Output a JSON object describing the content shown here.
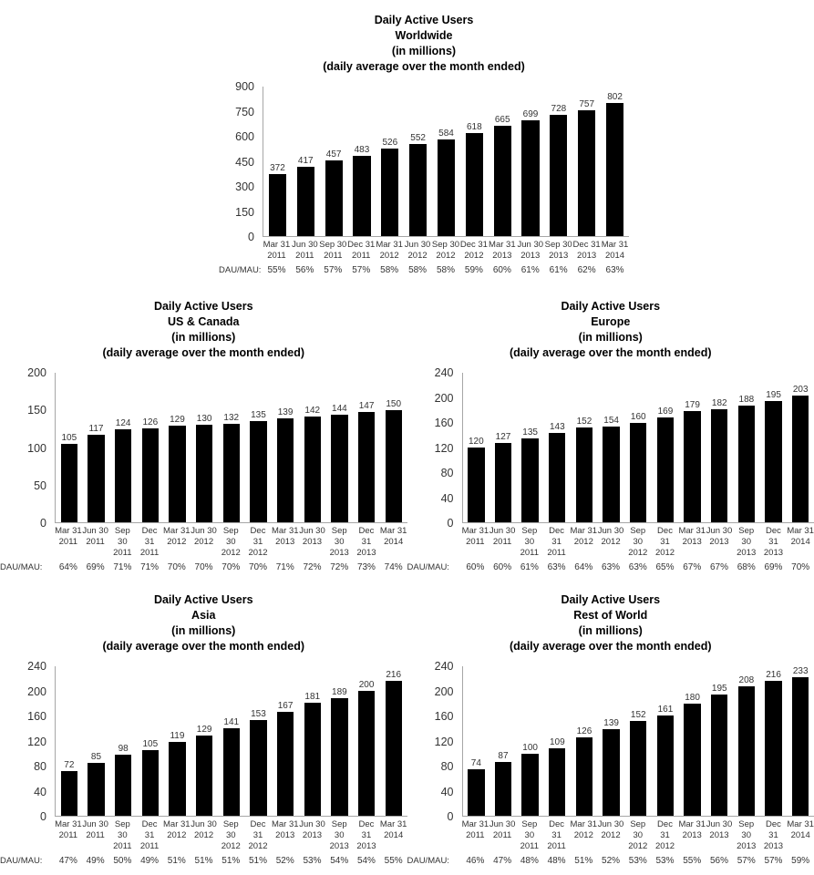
{
  "labels": {
    "dau_mau": "DAU/MAU:"
  },
  "chart_data": [
    {
      "id": "worldwide",
      "type": "bar",
      "title": "Daily Active Users",
      "title_lines": [
        "Daily Active Users",
        "Worldwide",
        "(in millions)",
        "(daily average over the month ended)"
      ],
      "categories": [
        "Mar 31 2011",
        "Jun 30 2011",
        "Sep 30 2011",
        "Dec 31 2011",
        "Mar 31 2012",
        "Jun 30 2012",
        "Sep 30 2012",
        "Dec 31 2012",
        "Mar 31 2013",
        "Jun 30 2013",
        "Sep 30 2013",
        "Dec 31 2013",
        "Mar 31 2014"
      ],
      "values": [
        372,
        417,
        457,
        483,
        526,
        552,
        584,
        618,
        665,
        699,
        728,
        757,
        802
      ],
      "dau_mau": [
        "55%",
        "56%",
        "57%",
        "57%",
        "58%",
        "58%",
        "58%",
        "59%",
        "60%",
        "61%",
        "61%",
        "62%",
        "63%"
      ],
      "ylim": [
        0,
        900
      ],
      "y_ticks": [
        900,
        750,
        600,
        450,
        300,
        150,
        0
      ],
      "bar_color": "#000000",
      "grid": false,
      "legend": null
    },
    {
      "id": "us-canada",
      "type": "bar",
      "title": "Daily Active Users",
      "title_lines": [
        "Daily Active Users",
        "US & Canada",
        "(in millions)",
        "(daily average over the month ended)"
      ],
      "categories": [
        "Mar 31 2011",
        "Jun 30 2011",
        "Sep 30 2011",
        "Dec 31 2011",
        "Mar 31 2012",
        "Jun 30 2012",
        "Sep 30 2012",
        "Dec 31 2012",
        "Mar 31 2013",
        "Jun 30 2013",
        "Sep 30 2013",
        "Dec 31 2013",
        "Mar 31 2014"
      ],
      "values": [
        105,
        117,
        124,
        126,
        129,
        130,
        132,
        135,
        139,
        142,
        144,
        147,
        150
      ],
      "dau_mau": [
        "64%",
        "69%",
        "71%",
        "71%",
        "70%",
        "70%",
        "70%",
        "70%",
        "71%",
        "72%",
        "72%",
        "73%",
        "74%"
      ],
      "ylim": [
        0,
        200
      ],
      "y_ticks": [
        200,
        150,
        100,
        50,
        0
      ],
      "bar_color": "#000000",
      "grid": false,
      "legend": null
    },
    {
      "id": "europe",
      "type": "bar",
      "title": "Daily Active Users",
      "title_lines": [
        "Daily Active Users",
        "Europe",
        "(in millions)",
        "(daily average over the month ended)"
      ],
      "categories": [
        "Mar 31 2011",
        "Jun 30 2011",
        "Sep 30 2011",
        "Dec 31 2011",
        "Mar 31 2012",
        "Jun 30 2012",
        "Sep 30 2012",
        "Dec 31 2012",
        "Mar 31 2013",
        "Jun 30 2013",
        "Sep 30 2013",
        "Dec 31 2013",
        "Mar 31 2014"
      ],
      "values": [
        120,
        127,
        135,
        143,
        152,
        154,
        160,
        169,
        179,
        182,
        188,
        195,
        203
      ],
      "dau_mau": [
        "60%",
        "60%",
        "61%",
        "63%",
        "64%",
        "63%",
        "63%",
        "65%",
        "67%",
        "67%",
        "68%",
        "69%",
        "70%"
      ],
      "ylim": [
        0,
        240
      ],
      "y_ticks": [
        240,
        200,
        160,
        120,
        80,
        40,
        0
      ],
      "bar_color": "#000000",
      "grid": false,
      "legend": null
    },
    {
      "id": "asia",
      "type": "bar",
      "title": "Daily Active Users",
      "title_lines": [
        "Daily Active Users",
        "Asia",
        "(in millions)",
        "(daily average over the month ended)"
      ],
      "categories": [
        "Mar 31 2011",
        "Jun 30 2011",
        "Sep 30 2011",
        "Dec 31 2011",
        "Mar 31 2012",
        "Jun 30 2012",
        "Sep 30 2012",
        "Dec 31 2012",
        "Mar 31 2013",
        "Jun 30 2013",
        "Sep 30 2013",
        "Dec 31 2013",
        "Mar 31 2014"
      ],
      "values": [
        72,
        85,
        98,
        105,
        119,
        129,
        141,
        153,
        167,
        181,
        189,
        200,
        216
      ],
      "dau_mau": [
        "47%",
        "49%",
        "50%",
        "49%",
        "51%",
        "51%",
        "51%",
        "51%",
        "52%",
        "53%",
        "54%",
        "54%",
        "55%"
      ],
      "ylim": [
        0,
        240
      ],
      "y_ticks": [
        240,
        200,
        160,
        120,
        80,
        40,
        0
      ],
      "bar_color": "#000000",
      "grid": false,
      "legend": null
    },
    {
      "id": "rest-of-world",
      "type": "bar",
      "title": "Daily Active Users",
      "title_lines": [
        "Daily Active Users",
        "Rest of World",
        "(in millions)",
        "(daily average over the month ended)"
      ],
      "categories": [
        "Mar 31 2011",
        "Jun 30 2011",
        "Sep 30 2011",
        "Dec 31 2011",
        "Mar 31 2012",
        "Jun 30 2012",
        "Sep 30 2012",
        "Dec 31 2012",
        "Mar 31 2013",
        "Jun 30 2013",
        "Sep 30 2013",
        "Dec 31 2013",
        "Mar 31 2014"
      ],
      "values": [
        74,
        87,
        100,
        109,
        126,
        139,
        152,
        161,
        180,
        195,
        208,
        216,
        233
      ],
      "dau_mau": [
        "46%",
        "47%",
        "48%",
        "48%",
        "51%",
        "52%",
        "53%",
        "53%",
        "55%",
        "56%",
        "57%",
        "57%",
        "59%"
      ],
      "ylim": [
        0,
        240
      ],
      "y_ticks": [
        240,
        200,
        160,
        120,
        80,
        40,
        0
      ],
      "bar_color": "#000000",
      "grid": false,
      "legend": null
    }
  ]
}
